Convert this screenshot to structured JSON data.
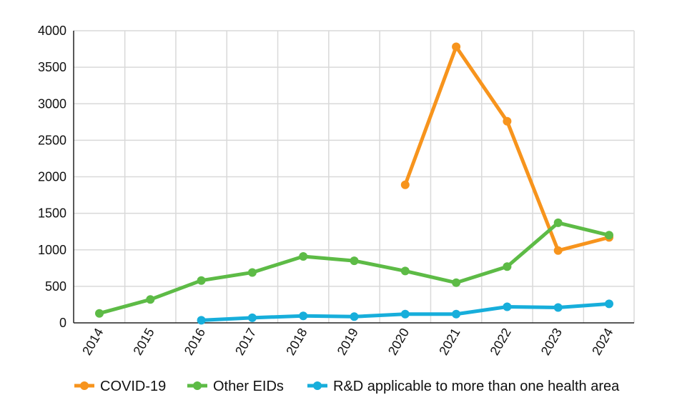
{
  "chart_data": {
    "type": "line",
    "title": "",
    "xlabel": "",
    "ylabel": "",
    "categories": [
      "2014",
      "2015",
      "2016",
      "2017",
      "2018",
      "2019",
      "2020",
      "2021",
      "2022",
      "2023",
      "2024"
    ],
    "ylim": [
      0,
      4000
    ],
    "yticks": [
      0,
      500,
      1000,
      1500,
      2000,
      2500,
      3000,
      3500,
      4000
    ],
    "grid": true,
    "legend_position": "bottom",
    "series": [
      {
        "name": "COVID-19",
        "color": "#F7941D",
        "values": [
          null,
          null,
          null,
          null,
          null,
          null,
          1890,
          3780,
          2760,
          990,
          1170
        ]
      },
      {
        "name": "Other EIDs",
        "color": "#5DBB46",
        "values": [
          130,
          320,
          580,
          690,
          910,
          850,
          710,
          550,
          770,
          1370,
          1200
        ]
      },
      {
        "name": "R&D applicable to more than one health area",
        "color": "#17AEDB",
        "values": [
          null,
          null,
          35,
          70,
          95,
          85,
          120,
          120,
          220,
          210,
          260
        ]
      }
    ]
  }
}
